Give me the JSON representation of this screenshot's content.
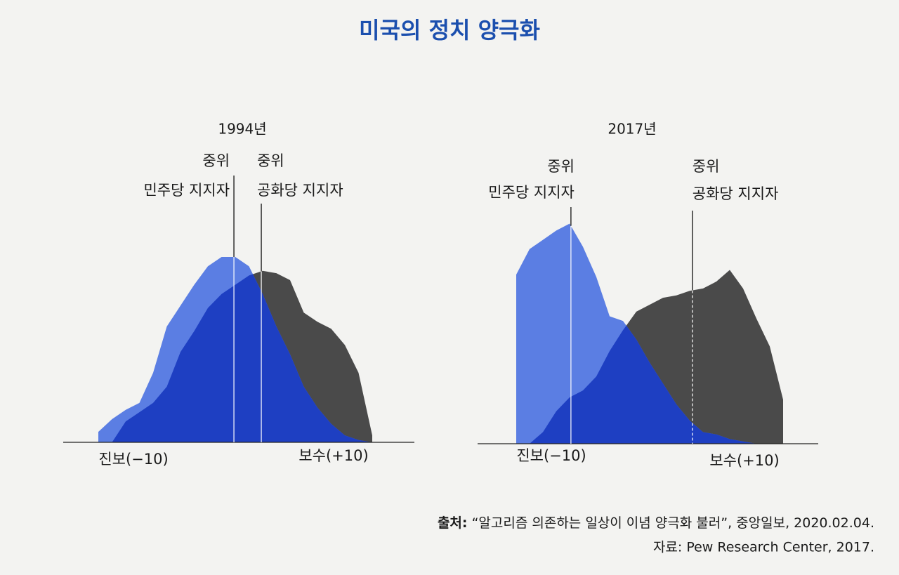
{
  "title": "미국의 정치 양극화",
  "source_label": "출처:",
  "source_text": "“알고리즘 의존하는 일상이 이념 양극화 불러”, 중앙일보, 2020.02.04.",
  "data_note": "자료: Pew Research Center, 2017.",
  "chart_data": [
    {
      "type": "area",
      "title": "1994년",
      "x": [
        -10,
        -9,
        -8,
        -7,
        -6,
        -5,
        -4,
        -3,
        -2,
        -1,
        0,
        1,
        2,
        3,
        4,
        5,
        6,
        7,
        8,
        9,
        10
      ],
      "xlim": [
        -10,
        10
      ],
      "ylim": [
        0,
        100
      ],
      "xticks": [
        {
          "value": -10,
          "label": "진보(−10)"
        },
        {
          "value": 10,
          "label": "보수(+10)"
        }
      ],
      "series": [
        {
          "name": "민주당 지지자",
          "color": "#5b7ee3",
          "values": [
            4.5,
            10,
            14,
            17,
            30,
            50,
            59,
            68,
            76,
            80,
            80,
            76,
            64,
            50,
            38,
            24,
            15,
            8,
            3,
            1,
            0
          ]
        },
        {
          "name": "공화당 지지자",
          "color": "#4a4a4a",
          "values": [
            0,
            0,
            9,
            13,
            17,
            24,
            39,
            48,
            58,
            64,
            68,
            72,
            74,
            73,
            70,
            56,
            52,
            49,
            42,
            30,
            3
          ]
        }
      ],
      "overlap_color": "#1e3fc2",
      "medians": [
        {
          "label": [
            "중위",
            "민주당 지지자"
          ],
          "value": -0.1
        },
        {
          "label": [
            "중위",
            "공화당 지지자"
          ],
          "value": 1.9
        }
      ]
    },
    {
      "type": "area",
      "title": "2017년",
      "x": [
        -10,
        -9,
        -8,
        -7,
        -6,
        -5,
        -4,
        -3,
        -2,
        -1,
        0,
        1,
        2,
        3,
        4,
        5,
        6,
        7,
        8,
        9,
        10
      ],
      "xlim": [
        -10,
        10
      ],
      "ylim": [
        0,
        100
      ],
      "xticks": [
        {
          "value": -10,
          "label": "진보(−10)"
        },
        {
          "value": 10,
          "label": "보수(+10)"
        }
      ],
      "series": [
        {
          "name": "민주당 지지자",
          "color": "#5b7ee3",
          "values": [
            73,
            84,
            88,
            92,
            95,
            85,
            72,
            55,
            53,
            45,
            35,
            26,
            17,
            10,
            5,
            4,
            2,
            1,
            0,
            0,
            0
          ]
        },
        {
          "name": "공화당 지지자",
          "color": "#4a4a4a",
          "values": [
            0,
            0,
            5,
            14,
            20,
            23,
            29,
            40,
            49,
            57,
            60,
            63,
            64,
            66,
            67,
            70,
            75,
            67,
            54,
            42,
            19
          ]
        }
      ],
      "overlap_color": "#1e3fc2",
      "medians": [
        {
          "label": [
            "중위",
            "민주당 지지자"
          ],
          "value": -5.9
        },
        {
          "label": [
            "중위",
            "공화당 지지자"
          ],
          "value": 3.2
        }
      ]
    }
  ]
}
